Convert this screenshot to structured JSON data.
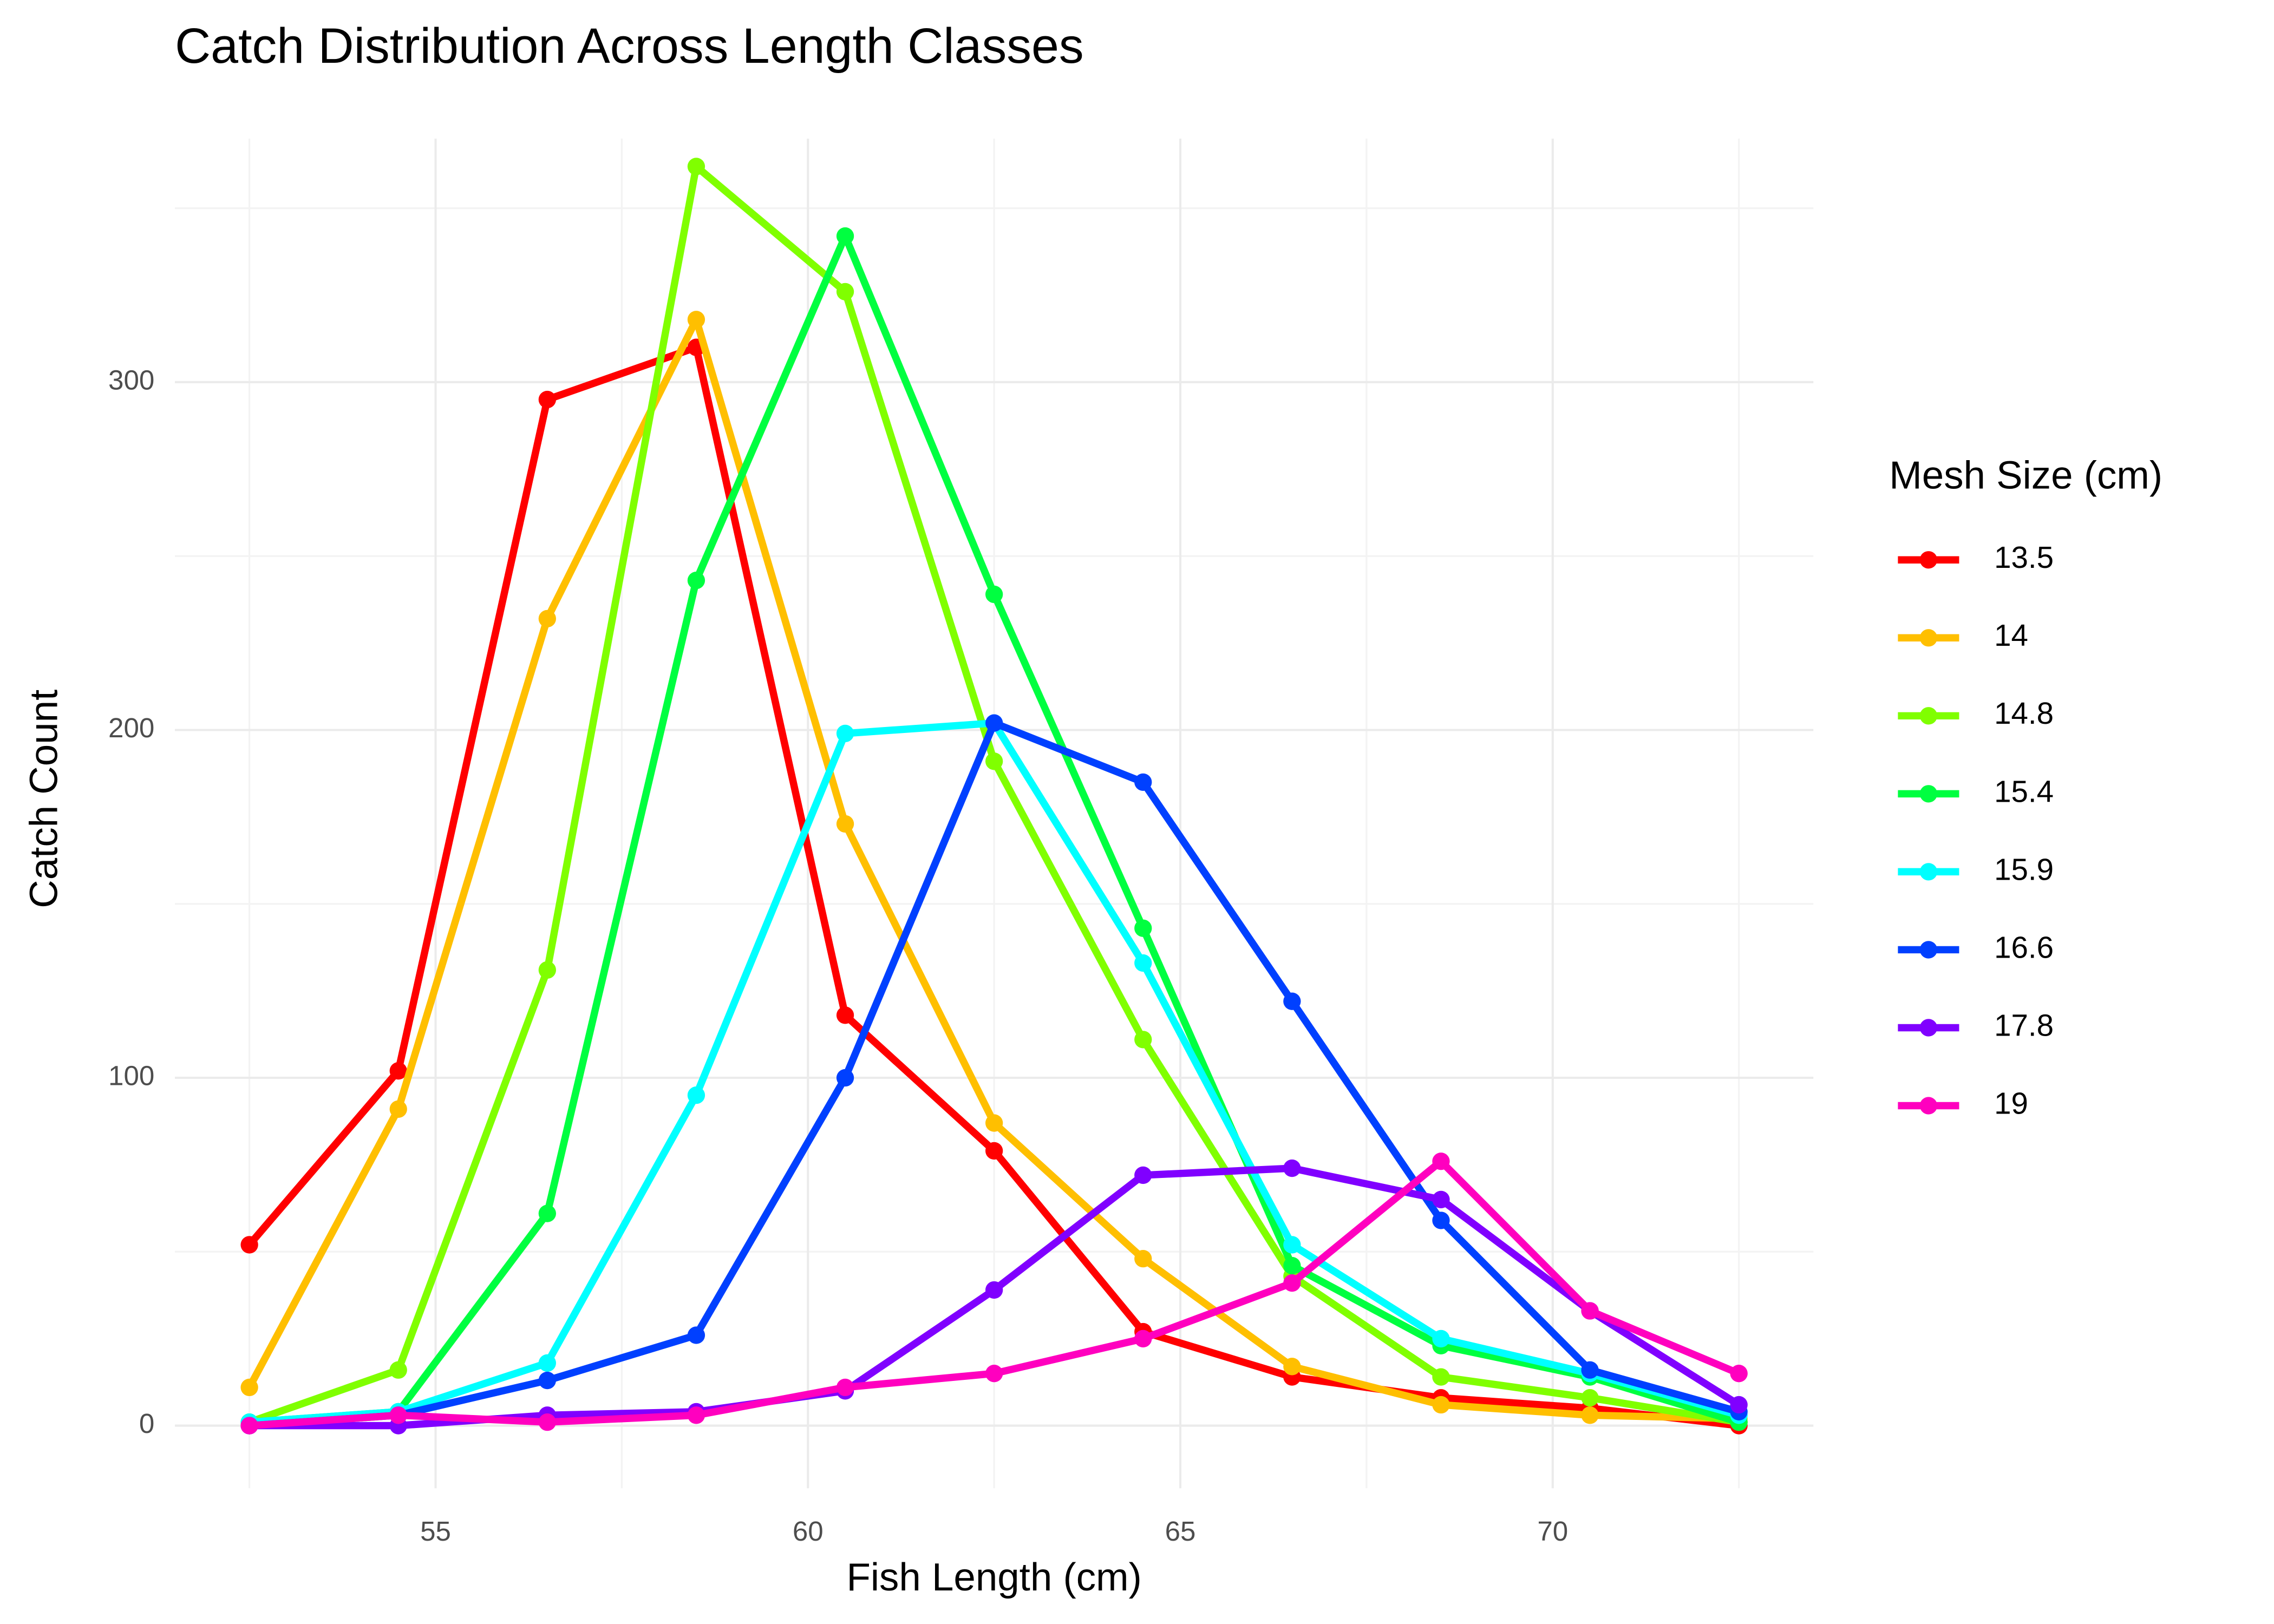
{
  "chart_data": {
    "type": "line",
    "title": "Catch Distribution Across Length Classes",
    "x_label": "Fish Length (cm)",
    "y_label": "Catch Count",
    "legend_title": "Mesh Size (cm)",
    "legend_position": "right",
    "grid": true,
    "x": [
      52.5,
      54.5,
      56.5,
      58.5,
      60.5,
      62.5,
      64.5,
      66.5,
      68.5,
      70.5,
      72.5
    ],
    "xlim": [
      51.5,
      73.5
    ],
    "xticks": [
      55,
      60,
      65,
      70
    ],
    "ylim": [
      -18,
      370
    ],
    "yticks": [
      0,
      100,
      200,
      300
    ],
    "series": [
      {
        "name": "13.5",
        "color": "#ff0000",
        "values": [
          52,
          102,
          295,
          310,
          118,
          79,
          27,
          14,
          8,
          5,
          0
        ]
      },
      {
        "name": "14",
        "color": "#ffbf00",
        "values": [
          11,
          91,
          232,
          318,
          173,
          87,
          48,
          17,
          6,
          3,
          2
        ]
      },
      {
        "name": "14.8",
        "color": "#80ff00",
        "values": [
          1,
          16,
          131,
          362,
          326,
          191,
          111,
          43,
          14,
          8,
          1
        ]
      },
      {
        "name": "15.4",
        "color": "#00ff40",
        "values": [
          1,
          4,
          61,
          243,
          342,
          239,
          143,
          46,
          23,
          14,
          1
        ]
      },
      {
        "name": "15.9",
        "color": "#00ffff",
        "values": [
          1,
          4,
          18,
          95,
          199,
          202,
          133,
          52,
          25,
          15,
          3
        ]
      },
      {
        "name": "16.6",
        "color": "#0040ff",
        "values": [
          0,
          3,
          13,
          26,
          100,
          202,
          185,
          122,
          59,
          16,
          4
        ]
      },
      {
        "name": "17.8",
        "color": "#8000ff",
        "values": [
          0,
          0,
          3,
          4,
          10,
          39,
          72,
          74,
          65,
          33,
          6
        ]
      },
      {
        "name": "19",
        "color": "#ff00bf",
        "values": [
          0,
          3,
          1,
          3,
          11,
          15,
          25,
          41,
          76,
          33,
          15
        ]
      }
    ]
  }
}
